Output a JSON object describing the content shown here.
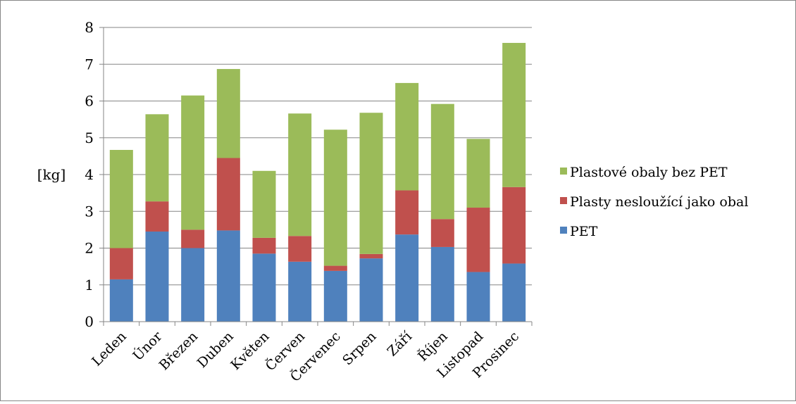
{
  "chart_data": {
    "type": "bar",
    "stacked": true,
    "title": "",
    "xlabel": "",
    "ylabel": "[kg]",
    "ylim": [
      0,
      8
    ],
    "yticks": [
      0,
      1,
      2,
      3,
      4,
      5,
      6,
      7,
      8
    ],
    "grid": true,
    "legend": "right",
    "categories": [
      "Leden",
      "Únor",
      "Březen",
      "Duben",
      "Květen",
      "Červen",
      "Červenec",
      "Srpen",
      "Září",
      "Říjen",
      "Listopad",
      "Prosinec"
    ],
    "series": [
      {
        "name": "PET",
        "color": "#4f81bd",
        "values": [
          1.15,
          2.45,
          2.0,
          2.48,
          1.85,
          1.63,
          1.38,
          1.72,
          2.37,
          2.03,
          1.35,
          1.58
        ]
      },
      {
        "name": "Plasty nesloužící jako obal",
        "color": "#c0504d",
        "values": [
          0.85,
          0.82,
          0.5,
          1.97,
          0.43,
          0.7,
          0.14,
          0.12,
          1.2,
          0.76,
          1.75,
          2.08
        ]
      },
      {
        "name": "Plastové obaly bez PET",
        "color": "#9bbb59",
        "values": [
          2.67,
          2.37,
          3.65,
          2.42,
          1.82,
          3.33,
          3.7,
          3.84,
          2.92,
          3.13,
          1.87,
          3.92
        ]
      }
    ]
  }
}
